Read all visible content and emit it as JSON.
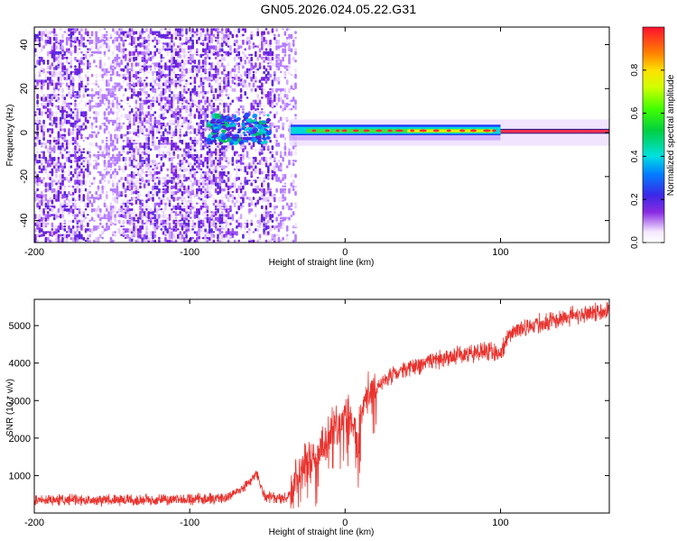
{
  "title": "GN05.2026.024.05.22.G31",
  "chart_data": [
    {
      "type": "heatmap",
      "xlabel": "Height of straight line (km)",
      "ylabel": "Frequency (Hz)",
      "xlim": [
        -200,
        170
      ],
      "ylim": [
        -50,
        48
      ],
      "xticks": [
        -200,
        -100,
        0,
        100
      ],
      "yticks": [
        -40,
        -20,
        0,
        20,
        40
      ],
      "colorbar": {
        "label": "Normalized spectral amplitude",
        "range": [
          0,
          1
        ],
        "ticks": [
          0.0,
          0.2,
          0.4,
          0.6,
          0.8
        ]
      },
      "notes": "Broadband noise (purple/violet) from -200 to about -32 km; narrow strong tone near 0 Hz from about -35 km to 170 km, brightest (red) at 0 to 100+ km."
    },
    {
      "type": "line",
      "xlabel": "Height of straight line (km)",
      "ylabel": "SNR (10 * v/v)",
      "xlim": [
        -200,
        170
      ],
      "ylim": [
        0,
        5700
      ],
      "xticks": [
        -200,
        -100,
        0,
        100
      ],
      "yticks": [
        1000,
        2000,
        3000,
        4000,
        5000
      ],
      "color": "#e8332e",
      "x": [
        -200,
        -180,
        -160,
        -140,
        -120,
        -100,
        -80,
        -70,
        -62,
        -57,
        -52,
        -45,
        -38,
        -33,
        -28,
        -23,
        -18,
        -13,
        -8,
        -4,
        0,
        3,
        6,
        8,
        10,
        13,
        18,
        25,
        35,
        50,
        65,
        80,
        95,
        100,
        104,
        108,
        120,
        140,
        160,
        170
      ],
      "y": [
        350,
        360,
        350,
        360,
        350,
        370,
        380,
        550,
        800,
        1050,
        450,
        380,
        380,
        700,
        1300,
        1350,
        1550,
        1850,
        2300,
        2400,
        2700,
        2400,
        2500,
        1500,
        2700,
        3000,
        3300,
        3550,
        3750,
        4000,
        4150,
        4250,
        4350,
        4200,
        4700,
        4800,
        5000,
        5200,
        5350,
        5400
      ]
    }
  ]
}
